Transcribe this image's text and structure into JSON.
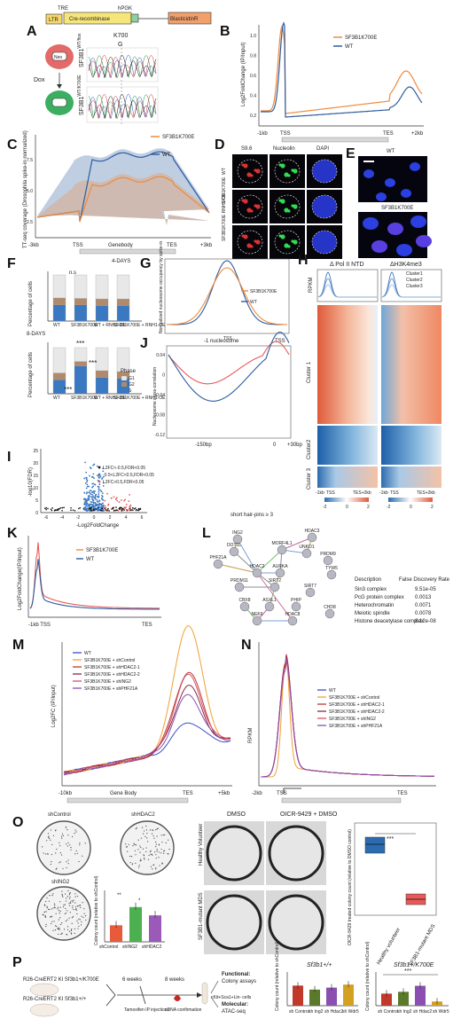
{
  "colors": {
    "wt": "#2e5c9e",
    "mutant": "#f08a3c",
    "mutant_red": "#e85a5a",
    "g1": "#e8e8e8",
    "g2": "#b08a6a",
    "s_phase": "#3a78c2",
    "cluster_blue": "#2b6cb0",
    "cluster_red": "#e05a3a",
    "black": "#111111"
  },
  "panels": {
    "A": {
      "label": "A",
      "construct": [
        "LTR",
        "TRE",
        "Cre-recombinase",
        "hPGK",
        "BlasticidinR"
      ],
      "dox": "Dox",
      "neo": "Neo",
      "mut_site": "K700",
      "ref_base": "G",
      "wt_label": "SF3B1",
      "wt_sup": "WT/flox",
      "mut_label": "SF3B1",
      "mut_sup": "WT/K700E"
    },
    "B": {
      "label": "B",
      "ylabel": "Log2FoldChange (IP/Input)",
      "legend": [
        "SF3B1K700E",
        "WT"
      ],
      "yticks": [
        "0.2",
        "0.4",
        "0.6",
        "0.8",
        "1.0"
      ],
      "xticks": [
        "-1kb",
        "TSS",
        "TES",
        "+2kb"
      ]
    },
    "C": {
      "label": "C",
      "ylabel": "TT-seq coverage (Drosophila spike-in normalized)",
      "legend": [
        "SF3B1K700E",
        "WT"
      ],
      "yticks": [
        "2.5",
        "5.0",
        "7.5"
      ],
      "xticks": [
        "-3kb",
        "TSS",
        "Genebody",
        "TES",
        "+3kb"
      ]
    },
    "D": {
      "label": "D",
      "cols": [
        "S9.6",
        "Nucleolin",
        "DAPI"
      ],
      "rows": [
        "WT",
        "SF3B1K700E",
        "SF3B1K700E RNH1-OE"
      ]
    },
    "E": {
      "label": "E",
      "rows": [
        "WT",
        "SF3B1K700E"
      ]
    },
    "F": {
      "label": "F",
      "top_title": "4-DAYS",
      "bottom_title": "8-DAYS",
      "ylabel": "Percentage of cells",
      "yticks": [
        "0",
        "25",
        "50",
        "75",
        "100"
      ],
      "cats": [
        "WT",
        "SF3B1K700E",
        "WT + RNH1-OE",
        "SF3B1K700E + RNH1-OE"
      ],
      "ns": "n.s",
      "stars": "***",
      "phase_title": "Phase",
      "phases": [
        "G1",
        "G2",
        "S"
      ]
    },
    "G": {
      "label": "G",
      "ylabel": "Normalized nucleosome occupancy by spike-in",
      "legend": [
        "SF3B1K700E",
        "WT"
      ],
      "xticks": [
        "TSS"
      ]
    },
    "H": {
      "label": "H",
      "left_title": "Δ Pol II NTD",
      "right_title": "ΔH3K4me3",
      "ylabel": "RPKM",
      "clusters": [
        "Cluster1",
        "Cluster2",
        "Cluster3"
      ],
      "row_labels": [
        "Cluster 1",
        "Cluster2",
        "Cluster 3"
      ],
      "xticks_left": [
        "-1kb",
        "TSS",
        "TES+2kb"
      ],
      "xticks_right": [
        "-1kb",
        "TSS",
        "TES+2kb"
      ],
      "scale": [
        "-2",
        "0",
        "2"
      ]
    },
    "I": {
      "label": "I",
      "ylabel": "-log10(FDR)",
      "xlabel": "-Log2FoldChange",
      "yticks": [
        "0",
        "5",
        "10",
        "15",
        "20",
        "25"
      ],
      "xticks": [
        "-6",
        "-4",
        "-2",
        "0",
        "2",
        "4",
        "6"
      ],
      "legend": [
        "L2FC<-0.5,FDR<0.05",
        "-0.5<L2FC<0.5,FDR<0.05",
        "L2FC>0.5,FDR<0.05"
      ]
    },
    "J": {
      "label": "J",
      "ylabel": "Nucleosome cross-correlation",
      "top_label": "-1 nucleosome",
      "tss": "TSS",
      "yticks": [
        "0.04",
        "0",
        "-0.04",
        "-0.08",
        "-0.12"
      ],
      "xticks": [
        "-150bp",
        "0",
        "+30bp"
      ]
    },
    "K": {
      "label": "K",
      "ylabel": "Log2FoldChange(IP/Input)",
      "legend": [
        "SF3B1K700E",
        "WT"
      ],
      "xticks": [
        "-1kb TSS",
        "TES"
      ]
    },
    "L": {
      "label": "L",
      "title": "short hair-pins ≥ 3",
      "nodes": [
        "ING2",
        "HDAC3",
        "DOT1L",
        "MORF4L1",
        "UNKO1",
        "PRDM9",
        "TYW5",
        "PHF21A",
        "HDAC2",
        "AURKA",
        "PRDM11",
        "SIRT2",
        "CBX8",
        "ASXL1",
        "PHIP",
        "SIRT7",
        "NEK6",
        "HDAC8",
        "CHD8"
      ],
      "table_headers": [
        "Description",
        "False Discovery Rate"
      ],
      "rows": [
        {
          "desc": "Sin3 complex",
          "fdr": "9.51e-05",
          "color": "#4a55c8"
        },
        {
          "desc": "PcG protein complex",
          "fdr": "0.0013",
          "color": "#222222"
        },
        {
          "desc": "Heterochromatin",
          "fdr": "0.0071",
          "color": "#222222"
        },
        {
          "desc": "Meiotic spindle",
          "fdr": "0.0078",
          "color": "#222222"
        },
        {
          "desc": "Histone deacetylase complex",
          "fdr": "8.12e-08",
          "color": "#d43a2a"
        }
      ]
    },
    "M": {
      "label": "M",
      "ylabel": "Log2FC (IP/Input)",
      "legend": [
        "WT",
        "SF3B1K700E + shControl",
        "SF3B1K700E + shHDAC2-1",
        "SF3B1K700E + shHDAC2-2",
        "SF3B1K700E + shING2",
        "SF3B1K700E + shPHF21A"
      ],
      "xticks": [
        "-10kb",
        "Gene Body",
        "TES",
        "+5kb"
      ]
    },
    "N": {
      "label": "N",
      "ylabel": "RPKM",
      "legend": [
        "WT",
        "SF3B1K700E + shControl",
        "SF3B1K700E + shHDAC2-1",
        "SF3B1K700E + shHDAC2-2",
        "SF3B1K700E + shING2",
        "SF3B1K700E + shPHF21A"
      ],
      "xticks": [
        "-2kb",
        "TSS",
        "TES"
      ]
    },
    "O": {
      "label": "O",
      "plates": [
        "shControl",
        "shHDAC2",
        "shING2"
      ],
      "bar_ylabel": "Colony count (relative to shControl)",
      "bar_cats": [
        "shControl",
        "shING2",
        "shHDAC2"
      ],
      "bar_values": [
        1.0,
        2.1,
        1.6
      ],
      "stars": [
        "**",
        "*"
      ],
      "dish_cols": [
        "DMSO",
        "OICR-9429 + DMSO"
      ],
      "dish_rows": [
        "Healthy Volunteer",
        "SF3B1-mutant MDS"
      ],
      "box_ylabel": "OICR-9429 treated colony count (relative to DMSO control)",
      "box_cats": [
        "Healthy volunteer",
        "SF3B1-mutant MDS"
      ],
      "box_stars": "***"
    },
    "P": {
      "label": "P",
      "mice": [
        "R26-CreERT2 KI Sf3b1+/K700E",
        "R26-CreERT2 KI Sf3b1+/+"
      ],
      "weeks": [
        "6 weeks",
        "8 weeks"
      ],
      "tamox": "Tamoxifen IP injections",
      "cdna": "cDNA confirmation",
      "cells": "cKit+Sca1+Lin- cells",
      "functional": "Functional:",
      "func_sub": "Colony assays",
      "molecular": "Molecular:",
      "mol_sub": "ATAC-seq",
      "chart_left_title": "Sf3b1+/+",
      "chart_right_title": "Sf3b1+/K700E",
      "ylabel": "Colony count (relative to shControl)",
      "cats": [
        "sh Control",
        "sh Ing2",
        "sh Hdac2",
        "sh Wdr5"
      ],
      "stars": "***"
    }
  },
  "chart_data": [
    {
      "type": "bar",
      "title": "",
      "panel": "O",
      "categories": [
        "shControl",
        "shING2",
        "shHDAC2"
      ],
      "values": [
        1.0,
        2.1,
        1.6
      ],
      "ylabel": "Colony count (relative to shControl)",
      "ylim": [
        0,
        3
      ]
    },
    {
      "type": "bar",
      "title": "Sf3b1+/+",
      "panel": "P",
      "categories": [
        "sh Control",
        "sh Ing2",
        "sh Hdac2",
        "sh Wdr5"
      ],
      "values": [
        1.0,
        0.8,
        0.9,
        1.05
      ],
      "ylabel": "Colony count (relative to shControl)",
      "ylim": [
        0,
        1.5
      ]
    },
    {
      "type": "bar",
      "title": "Sf3b1+/K700E",
      "panel": "P",
      "categories": [
        "sh Control",
        "sh Ing2",
        "sh Hdac2",
        "sh Wdr5"
      ],
      "values": [
        1.0,
        1.15,
        1.65,
        0.35
      ],
      "ylabel": "Colony count (relative to shControl)",
      "ylim": [
        0,
        2.5
      ]
    },
    {
      "type": "bar",
      "title": "4-DAYS",
      "panel": "F",
      "categories": [
        "WT",
        "SF3B1K700E",
        "WT + RNH1-OE",
        "SF3B1K700E + RNH1-OE"
      ],
      "series": [
        {
          "name": "S",
          "values": [
            35,
            35,
            33,
            33
          ]
        },
        {
          "name": "G2",
          "values": [
            15,
            14,
            15,
            15
          ]
        },
        {
          "name": "G1",
          "values": [
            50,
            51,
            52,
            52
          ]
        }
      ],
      "ylim": [
        0,
        100
      ]
    },
    {
      "type": "bar",
      "title": "8-DAYS",
      "panel": "F",
      "categories": [
        "WT",
        "SF3B1K700E",
        "WT + RNH1-OE",
        "SF3B1K700E + RNH1-OE"
      ],
      "series": [
        {
          "name": "S",
          "values": [
            30,
            60,
            35,
            33
          ]
        },
        {
          "name": "G2",
          "values": [
            15,
            10,
            15,
            15
          ]
        },
        {
          "name": "G1",
          "values": [
            55,
            30,
            50,
            52
          ]
        }
      ],
      "ylim": [
        0,
        100
      ]
    }
  ]
}
